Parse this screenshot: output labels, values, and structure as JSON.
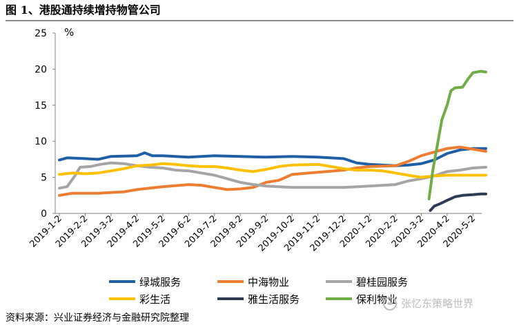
{
  "title": "图 1、港股通持续增持物管公司",
  "source": "资料来源：兴业证券经济与金融研究院整理",
  "watermark": "张忆东策略世界",
  "chart_data": {
    "type": "line",
    "ylabel": "%",
    "ylim": [
      0,
      25
    ],
    "yticks": [
      0,
      5,
      10,
      15,
      20,
      25
    ],
    "categories": [
      "2019-1-2",
      "2019-2-2",
      "2019-3-2",
      "2019-4-2",
      "2019-5-2",
      "2019-6-2",
      "2019-7-2",
      "2019-8-2",
      "2019-9-2",
      "2019-10-2",
      "2019-11-2",
      "2019-12-2",
      "2020-1-2",
      "2020-2-2",
      "2020-3-2",
      "2020-4-2",
      "2020-5-2"
    ],
    "legend_columns": 3,
    "series": [
      {
        "name": "绿城服务",
        "color": "#1f5fa6",
        "points": [
          [
            0,
            7.4
          ],
          [
            0.3,
            7.7
          ],
          [
            1,
            7.6
          ],
          [
            1.5,
            7.5
          ],
          [
            2,
            7.9
          ],
          [
            3,
            8.0
          ],
          [
            3.3,
            8.4
          ],
          [
            3.6,
            8.0
          ],
          [
            4,
            8.0
          ],
          [
            5,
            7.8
          ],
          [
            6,
            8.0
          ],
          [
            7,
            7.9
          ],
          [
            8,
            7.8
          ],
          [
            9,
            7.9
          ],
          [
            10,
            7.8
          ],
          [
            11,
            7.6
          ],
          [
            11.5,
            7.0
          ],
          [
            12,
            6.8
          ],
          [
            13,
            6.6
          ],
          [
            13.5,
            6.7
          ],
          [
            14,
            6.9
          ],
          [
            14.5,
            7.4
          ],
          [
            15,
            8.3
          ],
          [
            15.5,
            8.8
          ],
          [
            16,
            9.0
          ],
          [
            16.5,
            9.0
          ]
        ]
      },
      {
        "name": "中海物业",
        "color": "#ed7d31",
        "points": [
          [
            0,
            2.5
          ],
          [
            0.5,
            2.8
          ],
          [
            1,
            2.8
          ],
          [
            1.5,
            2.8
          ],
          [
            2,
            2.9
          ],
          [
            2.5,
            3.0
          ],
          [
            3,
            3.3
          ],
          [
            3.5,
            3.5
          ],
          [
            4,
            3.7
          ],
          [
            5,
            4.0
          ],
          [
            5.5,
            3.9
          ],
          [
            6,
            3.6
          ],
          [
            6.5,
            3.3
          ],
          [
            7,
            3.4
          ],
          [
            7.5,
            3.6
          ],
          [
            8,
            4.3
          ],
          [
            8.5,
            4.6
          ],
          [
            9,
            5.4
          ],
          [
            10,
            5.7
          ],
          [
            11,
            6.0
          ],
          [
            11.5,
            6.3
          ],
          [
            12,
            6.5
          ],
          [
            13,
            6.6
          ],
          [
            13.5,
            7.2
          ],
          [
            14,
            8.0
          ],
          [
            14.5,
            8.5
          ],
          [
            15,
            9.0
          ],
          [
            15.5,
            9.2
          ],
          [
            16,
            8.9
          ],
          [
            16.5,
            8.6
          ]
        ]
      },
      {
        "name": "碧桂园服务",
        "color": "#a5a5a5",
        "points": [
          [
            0,
            3.5
          ],
          [
            0.3,
            3.7
          ],
          [
            0.6,
            5.2
          ],
          [
            0.8,
            6.4
          ],
          [
            1.2,
            6.5
          ],
          [
            1.6,
            6.8
          ],
          [
            2,
            7.0
          ],
          [
            2.5,
            6.9
          ],
          [
            3,
            6.6
          ],
          [
            3.5,
            6.4
          ],
          [
            4,
            6.3
          ],
          [
            4.5,
            6.0
          ],
          [
            5,
            5.9
          ],
          [
            5.5,
            5.6
          ],
          [
            6,
            5.3
          ],
          [
            6.5,
            4.8
          ],
          [
            7,
            4.3
          ],
          [
            7.5,
            4.0
          ],
          [
            8,
            3.8
          ],
          [
            8.5,
            3.7
          ],
          [
            9,
            3.6
          ],
          [
            10,
            3.6
          ],
          [
            11,
            3.6
          ],
          [
            11.5,
            3.7
          ],
          [
            12,
            3.8
          ],
          [
            13,
            4.0
          ],
          [
            13.5,
            4.5
          ],
          [
            14,
            4.8
          ],
          [
            14.5,
            5.2
          ],
          [
            15,
            5.8
          ],
          [
            15.5,
            6.0
          ],
          [
            16,
            6.3
          ],
          [
            16.5,
            6.4
          ]
        ]
      },
      {
        "name": "彩生活",
        "color": "#ffc000",
        "points": [
          [
            0,
            5.4
          ],
          [
            0.5,
            5.6
          ],
          [
            1,
            5.5
          ],
          [
            1.5,
            5.6
          ],
          [
            2,
            5.9
          ],
          [
            2.5,
            6.2
          ],
          [
            3,
            6.6
          ],
          [
            3.5,
            6.7
          ],
          [
            4,
            6.9
          ],
          [
            4.5,
            6.8
          ],
          [
            5,
            6.6
          ],
          [
            5.5,
            6.5
          ],
          [
            6,
            6.5
          ],
          [
            6.5,
            6.3
          ],
          [
            7,
            6.0
          ],
          [
            7.5,
            5.8
          ],
          [
            8,
            6.1
          ],
          [
            8.5,
            6.5
          ],
          [
            9,
            6.7
          ],
          [
            10,
            6.8
          ],
          [
            10.5,
            6.5
          ],
          [
            11,
            6.2
          ],
          [
            11.5,
            6.0
          ],
          [
            12,
            6.0
          ],
          [
            12.5,
            5.9
          ],
          [
            13,
            5.6
          ],
          [
            13.5,
            5.3
          ],
          [
            14,
            5.0
          ],
          [
            14.5,
            5.2
          ],
          [
            15,
            5.3
          ],
          [
            15.5,
            5.3
          ],
          [
            16,
            5.3
          ],
          [
            16.5,
            5.3
          ]
        ]
      },
      {
        "name": "雅生活服务",
        "color": "#2e3b55",
        "points": [
          [
            14.35,
            0.4
          ],
          [
            14.5,
            1.0
          ],
          [
            14.7,
            1.3
          ],
          [
            15,
            1.8
          ],
          [
            15.3,
            2.3
          ],
          [
            15.6,
            2.5
          ],
          [
            16,
            2.6
          ],
          [
            16.3,
            2.7
          ],
          [
            16.5,
            2.7
          ]
        ]
      },
      {
        "name": "保利物业",
        "color": "#70ad47",
        "points": [
          [
            14.3,
            2.0
          ],
          [
            14.45,
            6.0
          ],
          [
            14.6,
            9.0
          ],
          [
            14.8,
            13.0
          ],
          [
            15,
            15.0
          ],
          [
            15.15,
            17.0
          ],
          [
            15.3,
            17.4
          ],
          [
            15.6,
            17.5
          ],
          [
            15.8,
            18.6
          ],
          [
            16,
            19.5
          ],
          [
            16.3,
            19.7
          ],
          [
            16.5,
            19.6
          ]
        ]
      }
    ]
  }
}
